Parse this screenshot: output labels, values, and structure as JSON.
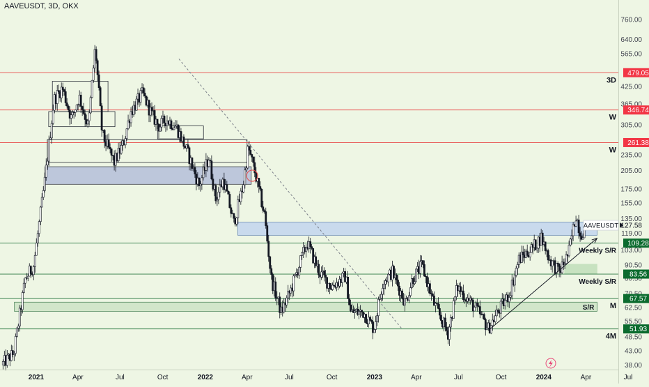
{
  "header": {
    "symbol_title": "AAVEUSDT, 3D, OKX"
  },
  "chart_data": {
    "type": "candlestick",
    "title": "AAVEUSDT, 3D, OKX",
    "y_scale": "log",
    "ylim": [
      36.5,
      900
    ],
    "x_range": [
      "2020-10-15",
      "2024-06-10"
    ],
    "y_ticks": [
      "760.00",
      "640.00",
      "565.00",
      "425.00",
      "365.00",
      "305.00",
      "235.00",
      "205.00",
      "175.00",
      "155.00",
      "135.00",
      "119.00",
      "103.00",
      "90.50",
      "80.50",
      "70.50",
      "62.50",
      "55.50",
      "48.50",
      "43.00",
      "38.00"
    ],
    "x_ticks": [
      {
        "label": "2021",
        "date": "2021-01-01",
        "bold": true
      },
      {
        "label": "Apr",
        "date": "2021-04-01",
        "bold": false
      },
      {
        "label": "Jul",
        "date": "2021-07-01",
        "bold": false
      },
      {
        "label": "Oct",
        "date": "2021-10-01",
        "bold": false
      },
      {
        "label": "2022",
        "date": "2022-01-01",
        "bold": true
      },
      {
        "label": "Apr",
        "date": "2022-04-01",
        "bold": false
      },
      {
        "label": "Jul",
        "date": "2022-07-01",
        "bold": false
      },
      {
        "label": "Oct",
        "date": "2022-10-01",
        "bold": false
      },
      {
        "label": "2023",
        "date": "2023-01-01",
        "bold": true
      },
      {
        "label": "Apr",
        "date": "2023-04-01",
        "bold": false
      },
      {
        "label": "Jul",
        "date": "2023-07-01",
        "bold": false
      },
      {
        "label": "Oct",
        "date": "2023-10-01",
        "bold": false
      },
      {
        "label": "2024",
        "date": "2024-01-01",
        "bold": true
      },
      {
        "label": "Apr",
        "date": "2024-04-01",
        "bold": false
      },
      {
        "label": "Jul",
        "date": "2024-07-01",
        "bold": false
      }
    ],
    "price_path": [
      [
        "2020-10-20",
        38
      ],
      [
        "2020-11-15",
        42
      ],
      [
        "2020-12-10",
        80
      ],
      [
        "2020-12-28",
        90
      ],
      [
        "2021-01-20",
        180
      ],
      [
        "2021-02-10",
        380
      ],
      [
        "2021-02-28",
        420
      ],
      [
        "2021-03-20",
        320
      ],
      [
        "2021-04-05",
        390
      ],
      [
        "2021-04-25",
        300
      ],
      [
        "2021-05-10",
        600
      ],
      [
        "2021-05-25",
        280
      ],
      [
        "2021-06-20",
        220
      ],
      [
        "2021-07-10",
        260
      ],
      [
        "2021-07-25",
        340
      ],
      [
        "2021-08-20",
        400
      ],
      [
        "2021-09-10",
        330
      ],
      [
        "2021-09-25",
        300
      ],
      [
        "2021-10-10",
        320
      ],
      [
        "2021-11-01",
        300
      ],
      [
        "2021-11-25",
        240
      ],
      [
        "2021-12-20",
        180
      ],
      [
        "2022-01-10",
        230
      ],
      [
        "2022-01-25",
        160
      ],
      [
        "2022-02-10",
        190
      ],
      [
        "2022-03-05",
        130
      ],
      [
        "2022-03-25",
        180
      ],
      [
        "2022-04-05",
        250
      ],
      [
        "2022-04-20",
        200
      ],
      [
        "2022-05-10",
        140
      ],
      [
        "2022-05-25",
        80
      ],
      [
        "2022-06-15",
        60
      ],
      [
        "2022-07-05",
        72
      ],
      [
        "2022-08-10",
        110
      ],
      [
        "2022-09-05",
        85
      ],
      [
        "2022-10-01",
        75
      ],
      [
        "2022-11-01",
        82
      ],
      [
        "2022-11-12",
        60
      ],
      [
        "2022-12-10",
        60
      ],
      [
        "2023-01-01",
        52
      ],
      [
        "2023-01-20",
        78
      ],
      [
        "2023-02-10",
        85
      ],
      [
        "2023-03-10",
        65
      ],
      [
        "2023-03-25",
        80
      ],
      [
        "2023-04-15",
        90
      ],
      [
        "2023-05-10",
        65
      ],
      [
        "2023-06-10",
        50
      ],
      [
        "2023-06-30",
        75
      ],
      [
        "2023-07-20",
        68
      ],
      [
        "2023-08-15",
        60
      ],
      [
        "2023-09-05",
        52
      ],
      [
        "2023-09-25",
        60
      ],
      [
        "2023-10-20",
        70
      ],
      [
        "2023-11-10",
        95
      ],
      [
        "2023-12-10",
        105
      ],
      [
        "2023-12-28",
        115
      ],
      [
        "2024-01-15",
        95
      ],
      [
        "2024-02-05",
        85
      ],
      [
        "2024-02-25",
        100
      ],
      [
        "2024-03-12",
        140
      ],
      [
        "2024-03-22",
        118
      ],
      [
        "2024-03-28",
        122
      ]
    ],
    "horizontal_levels": [
      {
        "price": 479.05,
        "label": "479.05",
        "style": "red",
        "annotation": "3D"
      },
      {
        "price": 346.74,
        "label": "346.74",
        "style": "red",
        "annotation": "W"
      },
      {
        "price": 261.38,
        "label": "261.38",
        "style": "red",
        "annotation": "W"
      },
      {
        "price": 109.28,
        "label": "109.28",
        "style": "green",
        "annotation": "Weekly S/R"
      },
      {
        "price": 83.56,
        "label": "83.56",
        "style": "green",
        "annotation": "Weekly S/R"
      },
      {
        "price": 67.57,
        "label": "67.57",
        "style": "green",
        "annotation": "M"
      },
      {
        "price": 51.93,
        "label": "51.93",
        "style": "green",
        "annotation": "4M"
      }
    ],
    "zones": [
      {
        "from": "2021-01-20",
        "to": "2022-04-10",
        "low": 182,
        "high": 212,
        "color": "#b8c2db",
        "border": "#2a2e39"
      },
      {
        "from": "2022-03-12",
        "to": "2024-04-25",
        "low": 117,
        "high": 131,
        "color": "#c6d8ee",
        "border": "#5d7fb0"
      },
      {
        "from": "2020-11-15",
        "to": "2024-04-25",
        "low": 60.5,
        "high": 65.5,
        "color": "#cfe5c8",
        "border": "#3e7a4d",
        "annotation": "S/R"
      },
      {
        "from": "2024-02-15",
        "to": "2024-04-25",
        "low": 83.6,
        "high": 91,
        "color": "#c3e0bd",
        "border": "#c3e0bd"
      }
    ],
    "range_boxes": [
      {
        "from": "2021-02-05",
        "to": "2021-06-05",
        "low": 342,
        "high": 445
      },
      {
        "from": "2021-01-28",
        "to": "2021-06-20",
        "low": 300,
        "high": 342
      },
      {
        "from": "2021-09-20",
        "to": "2021-12-28",
        "low": 270,
        "high": 302
      },
      {
        "from": "2021-01-25",
        "to": "2022-04-01",
        "low": 220,
        "high": 268
      }
    ],
    "trendlines": [
      {
        "from": [
          "2021-11-05",
          540
        ],
        "to": [
          "2023-03-01",
          52
        ],
        "style": "dashed",
        "arrow": false
      },
      {
        "from": [
          "2023-09-05",
          51.5
        ],
        "to": [
          "2024-04-25",
          114
        ],
        "style": "solid",
        "arrow": true
      }
    ],
    "current_price": {
      "price": 127.58,
      "label": "127.58",
      "symbol": "AAVEUSDT"
    }
  }
}
